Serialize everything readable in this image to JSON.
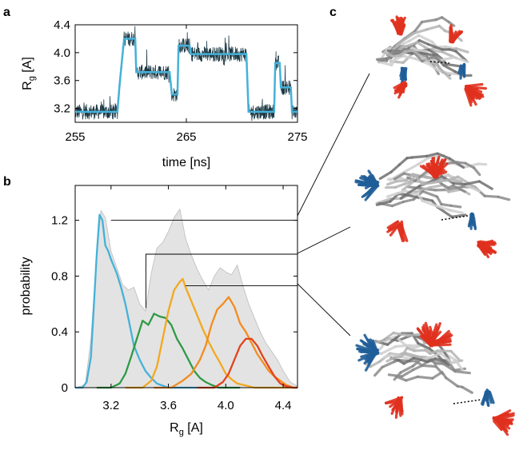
{
  "panels": {
    "a": "a",
    "b": "b",
    "c": "c"
  },
  "colors": {
    "trace_dark": "#1d3a46",
    "trace_fit": "#45b1d8",
    "state1": "#45b1d8",
    "state2": "#2e9a45",
    "state3": "#f3a81f",
    "state4": "#f38c20",
    "state5": "#e2431e",
    "background_hist": "#e3e3e3",
    "background_hist_edge": "#bdbdbd",
    "oxygen_red": "#e0301e",
    "nitrogen_blue": "#1f5e99",
    "carbon_gray": "#9a9a9a"
  },
  "chart_data": [
    {
      "panel": "a",
      "type": "line",
      "xlabel": "time [ns]",
      "ylabel": "R",
      "ylabel_sub": "g",
      "ylabel_unit": " [A]",
      "xlim": [
        255,
        275
      ],
      "ylim": [
        3.0,
        4.4
      ],
      "xticks": [
        255,
        265,
        275
      ],
      "xtick_labels": [
        "255",
        "265",
        "275"
      ],
      "yticks": [
        3.2,
        3.6,
        4.0,
        4.4
      ],
      "ytick_labels": [
        "3.2",
        "3.6",
        "4.0",
        "4.4"
      ],
      "series": [
        {
          "style": "state-fit",
          "steps": [
            [
              255.0,
              3.15
            ],
            [
              258.8,
              3.15
            ],
            [
              259.0,
              3.55
            ],
            [
              259.4,
              4.2
            ],
            [
              260.4,
              4.2
            ],
            [
              260.5,
              3.72
            ],
            [
              263.5,
              3.72
            ],
            [
              263.7,
              3.4
            ],
            [
              264.2,
              3.4
            ],
            [
              264.3,
              4.1
            ],
            [
              265.3,
              4.1
            ],
            [
              265.4,
              3.98
            ],
            [
              270.4,
              3.98
            ],
            [
              270.6,
              3.15
            ],
            [
              272.9,
              3.15
            ],
            [
              273.0,
              3.85
            ],
            [
              273.4,
              3.85
            ],
            [
              273.5,
              3.5
            ],
            [
              274.4,
              3.5
            ],
            [
              274.5,
              3.15
            ],
            [
              275.0,
              3.15
            ]
          ]
        }
      ]
    },
    {
      "panel": "b",
      "type": "line",
      "xlabel": "R",
      "xlabel_sub": "g",
      "xlabel_unit": " [A]",
      "ylabel": "probability",
      "xlim": [
        2.95,
        4.5
      ],
      "ylim": [
        0,
        1.45
      ],
      "xticks": [
        3.2,
        3.6,
        4.0,
        4.4
      ],
      "xtick_labels": [
        "3.2",
        "3.6",
        "4.0",
        "4.4"
      ],
      "yticks": [
        0,
        0.4,
        0.8,
        1.2
      ],
      "ytick_labels": [
        "0",
        "0.4",
        "0.8",
        "1.2"
      ],
      "background_area": {
        "x": [
          2.95,
          3.02,
          3.06,
          3.1,
          3.13,
          3.16,
          3.2,
          3.24,
          3.28,
          3.32,
          3.36,
          3.4,
          3.44,
          3.48,
          3.52,
          3.56,
          3.6,
          3.64,
          3.68,
          3.72,
          3.76,
          3.8,
          3.84,
          3.88,
          3.92,
          3.96,
          4.0,
          4.04,
          4.08,
          4.12,
          4.16,
          4.2,
          4.24,
          4.28,
          4.32,
          4.36,
          4.4,
          4.45,
          4.5
        ],
        "y": [
          0,
          0.02,
          0.35,
          0.95,
          1.27,
          1.22,
          0.98,
          0.86,
          0.74,
          0.7,
          0.72,
          0.6,
          0.55,
          0.82,
          1.0,
          1.04,
          1.12,
          1.22,
          1.28,
          1.07,
          0.95,
          0.85,
          0.77,
          0.7,
          0.8,
          0.86,
          0.83,
          0.81,
          0.88,
          0.73,
          0.6,
          0.5,
          0.4,
          0.32,
          0.26,
          0.2,
          0.12,
          0.04,
          0.01
        ]
      },
      "series": [
        {
          "color_key": "state1",
          "x": [
            2.95,
            3.0,
            3.03,
            3.06,
            3.08,
            3.1,
            3.12,
            3.14,
            3.16,
            3.18,
            3.2,
            3.22,
            3.24,
            3.27,
            3.3,
            3.33,
            3.36,
            3.4,
            3.44,
            3.48,
            3.52,
            3.56,
            3.6,
            3.7,
            3.8
          ],
          "y": [
            0,
            0.0,
            0.04,
            0.22,
            0.58,
            0.95,
            1.24,
            1.2,
            1.02,
            0.98,
            0.92,
            0.87,
            0.82,
            0.72,
            0.6,
            0.45,
            0.3,
            0.2,
            0.12,
            0.07,
            0.03,
            0.015,
            0.0,
            0.0,
            0.0
          ]
        },
        {
          "color_key": "state2",
          "x": [
            3.1,
            3.2,
            3.26,
            3.3,
            3.34,
            3.38,
            3.42,
            3.46,
            3.5,
            3.54,
            3.58,
            3.62,
            3.66,
            3.7,
            3.74,
            3.78,
            3.82,
            3.86,
            3.9,
            3.95,
            4.0,
            4.1
          ],
          "y": [
            0,
            0.0,
            0.03,
            0.1,
            0.22,
            0.35,
            0.48,
            0.45,
            0.53,
            0.51,
            0.5,
            0.45,
            0.35,
            0.28,
            0.2,
            0.12,
            0.07,
            0.04,
            0.02,
            0.0,
            0.0,
            0.0
          ]
        },
        {
          "color_key": "state3",
          "x": [
            3.3,
            3.42,
            3.48,
            3.52,
            3.56,
            3.6,
            3.64,
            3.68,
            3.7,
            3.72,
            3.76,
            3.8,
            3.84,
            3.88,
            3.92,
            3.96,
            4.0,
            4.04,
            4.08,
            4.12,
            4.16,
            4.2,
            4.3,
            4.4,
            4.45,
            4.5
          ],
          "y": [
            0,
            0.0,
            0.05,
            0.15,
            0.35,
            0.55,
            0.7,
            0.76,
            0.78,
            0.72,
            0.62,
            0.52,
            0.42,
            0.33,
            0.25,
            0.18,
            0.1,
            0.06,
            0.03,
            0.02,
            0.01,
            0.0,
            0.0,
            0.0,
            0.0,
            0.0
          ]
        },
        {
          "color_key": "state4",
          "x": [
            3.5,
            3.62,
            3.7,
            3.76,
            3.82,
            3.86,
            3.9,
            3.94,
            3.98,
            4.02,
            4.06,
            4.1,
            4.14,
            4.18,
            4.22,
            4.26,
            4.3,
            4.34,
            4.38,
            4.42,
            4.47,
            4.5
          ],
          "y": [
            0,
            0.0,
            0.05,
            0.1,
            0.2,
            0.3,
            0.45,
            0.56,
            0.6,
            0.65,
            0.58,
            0.46,
            0.4,
            0.32,
            0.24,
            0.18,
            0.12,
            0.08,
            0.05,
            0.02,
            0.0,
            0.0
          ]
        },
        {
          "color_key": "state5",
          "x": [
            3.8,
            3.92,
            3.98,
            4.02,
            4.06,
            4.1,
            4.14,
            4.18,
            4.22,
            4.26,
            4.3,
            4.34,
            4.38,
            4.42,
            4.47,
            4.5
          ],
          "y": [
            0,
            0.0,
            0.04,
            0.1,
            0.2,
            0.3,
            0.35,
            0.35,
            0.3,
            0.22,
            0.15,
            0.08,
            0.03,
            0.01,
            0.0,
            0.0
          ]
        }
      ],
      "annotations": [
        {
          "from_x": 3.2,
          "from_y": 1.2,
          "to": "structure-1"
        },
        {
          "from_x": 3.42,
          "from_y": 0.57,
          "via_x": 3.46,
          "via_y": 0.95,
          "to": "structure-2"
        },
        {
          "from_x": 3.72,
          "from_y": 0.73,
          "to": "structure-3"
        }
      ]
    }
  ]
}
